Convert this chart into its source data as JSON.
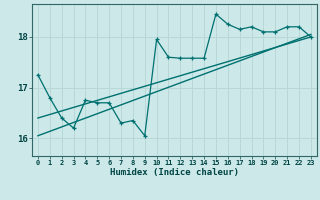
{
  "xlabel": "Humidex (Indice chaleur)",
  "bg_color": "#cce8e8",
  "grid_color": "#b8d8d8",
  "line_color": "#007070",
  "xlim": [
    -0.5,
    23.5
  ],
  "ylim": [
    15.65,
    18.65
  ],
  "yticks": [
    16,
    17,
    18
  ],
  "xtick_labels": [
    "0",
    "1",
    "2",
    "3",
    "4",
    "5",
    "6",
    "7",
    "8",
    "9",
    "10",
    "11",
    "12",
    "13",
    "14",
    "15",
    "16",
    "17",
    "18",
    "19",
    "20",
    "21",
    "22",
    "23"
  ],
  "data_x": [
    0,
    1,
    2,
    3,
    4,
    5,
    6,
    7,
    8,
    9,
    10,
    11,
    12,
    13,
    14,
    15,
    16,
    17,
    18,
    19,
    20,
    21,
    22,
    23
  ],
  "data_y": [
    17.25,
    16.8,
    16.4,
    16.2,
    16.75,
    16.7,
    16.7,
    16.3,
    16.35,
    16.05,
    17.95,
    17.6,
    17.58,
    17.58,
    17.58,
    18.45,
    18.25,
    18.15,
    18.2,
    18.1,
    18.1,
    18.2,
    18.2,
    18.0
  ],
  "trend1_x": [
    0,
    23
  ],
  "trend1_y": [
    16.05,
    18.05
  ],
  "trend2_x": [
    0,
    23
  ],
  "trend2_y": [
    16.4,
    18.0
  ],
  "figsize": [
    3.2,
    2.0
  ],
  "dpi": 100
}
